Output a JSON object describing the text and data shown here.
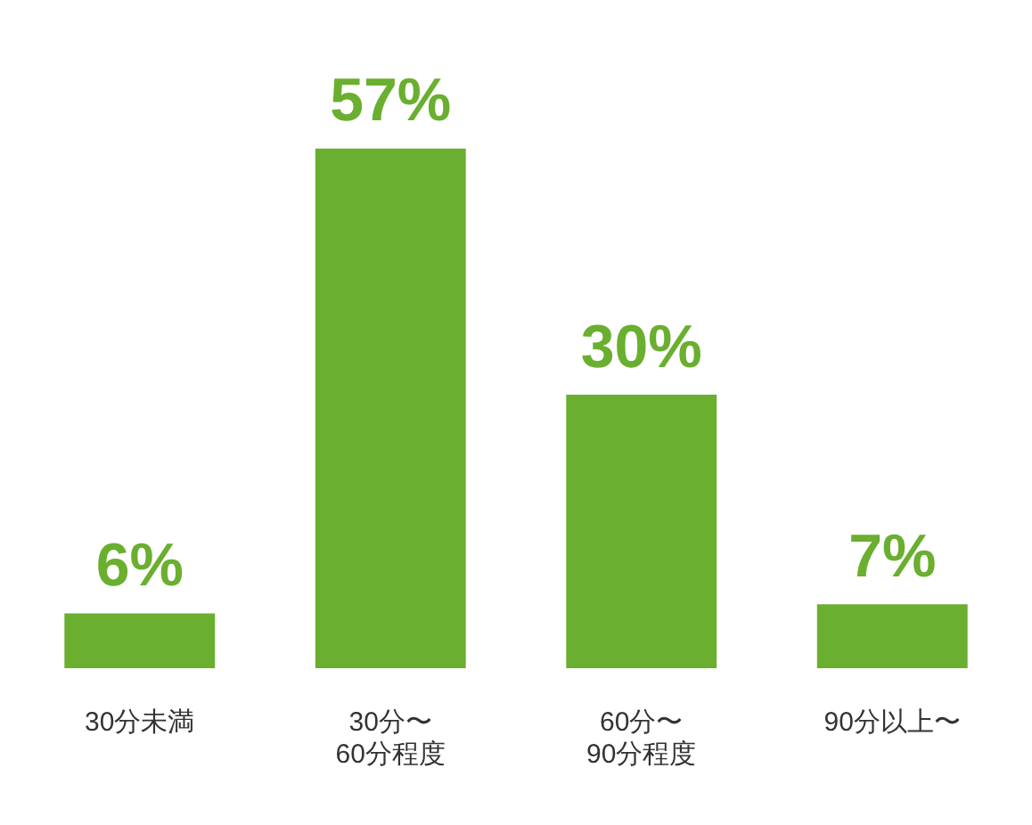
{
  "chart_data": {
    "type": "bar",
    "categories": [
      "30分未満",
      "30分〜\n60分程度",
      "60分〜\n90分程度",
      "90分以上〜"
    ],
    "values": [
      6,
      57,
      30,
      7
    ],
    "color": "#6aaf2f",
    "value_labels": [
      "6%",
      "57%",
      "30%",
      "7%"
    ],
    "grid": false,
    "legend": false
  }
}
